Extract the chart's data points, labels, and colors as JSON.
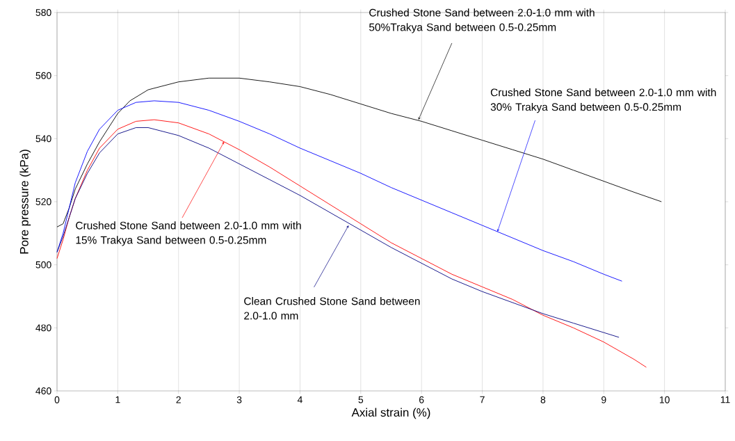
{
  "chart_data": {
    "type": "line",
    "xlabel": "Axial strain (%)",
    "ylabel": "Pore pressure (kPa)",
    "xlim": [
      0,
      11
    ],
    "ylim": [
      460,
      580
    ],
    "xticks": [
      0,
      1,
      2,
      3,
      4,
      5,
      6,
      7,
      8,
      9,
      10,
      11
    ],
    "yticks": [
      460,
      480,
      500,
      520,
      540,
      560,
      580
    ],
    "grid": "x",
    "marker": "none",
    "line_style": "solid",
    "series": [
      {
        "color": "#000000",
        "x": [
          0,
          0.1,
          0.2,
          0.3,
          0.5,
          0.7,
          1.0,
          1.2,
          1.5,
          2.0,
          2.5,
          3.0,
          3.5,
          4.0,
          4.5,
          5.0,
          5.5,
          6.0,
          6.5,
          7.0,
          7.5,
          8.0,
          8.5,
          9.0,
          9.5,
          9.95
        ],
        "values": [
          512,
          513,
          518,
          524,
          532,
          539,
          548,
          552,
          555.5,
          558,
          559.2,
          559.2,
          558,
          556.5,
          554,
          551,
          548,
          545.5,
          542.5,
          539.5,
          536.5,
          533.5,
          530,
          526.5,
          523,
          520
        ]
      },
      {
        "color": "#0000ff",
        "x": [
          0,
          0.1,
          0.2,
          0.3,
          0.5,
          0.7,
          1.0,
          1.3,
          1.6,
          2.0,
          2.5,
          3.0,
          3.5,
          4.0,
          4.5,
          5.0,
          5.5,
          6.0,
          6.5,
          7.0,
          7.5,
          8.0,
          8.5,
          9.0,
          9.3
        ],
        "values": [
          504,
          510,
          518,
          526,
          536,
          543,
          549,
          551.5,
          552,
          551.5,
          549,
          545.5,
          541.5,
          537,
          533,
          529,
          524.5,
          520.5,
          516.5,
          512.5,
          508.5,
          504.5,
          501,
          497,
          494.8
        ]
      },
      {
        "color": "#ff0000",
        "x": [
          0,
          0.1,
          0.2,
          0.3,
          0.5,
          0.7,
          1.0,
          1.3,
          1.6,
          2.0,
          2.5,
          3.0,
          3.5,
          4.0,
          4.5,
          5.0,
          5.5,
          6.0,
          6.5,
          7.0,
          7.5,
          8.0,
          8.5,
          9.0,
          9.5,
          9.7
        ],
        "values": [
          502,
          508,
          515,
          521,
          530,
          537,
          543,
          545.5,
          546,
          545,
          541.5,
          536.5,
          531,
          525,
          519,
          513,
          507,
          502,
          497,
          493,
          489,
          484,
          480,
          475.5,
          470,
          467.5
        ]
      },
      {
        "color": "#000080",
        "x": [
          0,
          0.1,
          0.2,
          0.3,
          0.5,
          0.7,
          1.0,
          1.3,
          1.5,
          2.0,
          2.5,
          3.0,
          3.5,
          4.0,
          4.5,
          5.0,
          5.5,
          6.0,
          6.5,
          7.0,
          7.5,
          8.0,
          8.5,
          9.0,
          9.25
        ],
        "values": [
          504,
          509,
          515,
          521,
          529,
          535.5,
          541.5,
          543.5,
          543.5,
          541,
          537,
          532,
          527,
          522,
          516.5,
          511,
          505.5,
          500.5,
          495.5,
          491.5,
          488,
          484.5,
          481.5,
          478.5,
          477
        ]
      }
    ],
    "annotations": [
      {
        "text": "Crushed Stone Sand between 2.0-1.0 mm with 50%Trakya Sand between 0.5-0.25mm",
        "x": 5.95,
        "y": 546
      },
      {
        "text": "Crushed Stone Sand between 2.0-1.0 mm with 30% Trakya Sand between 0.5-0.25mm",
        "x": 7.25,
        "y": 510.5
      },
      {
        "text": "Crushed Stone Sand between 2.0-1.0 mm with 15% Trakya Sand between 0.5-0.25mm",
        "x": 2.75,
        "y": 539
      },
      {
        "text": "Clean Crushed Stone Sand between 2.0-1.0 mm",
        "x": 4.8,
        "y": 512.5
      }
    ]
  }
}
